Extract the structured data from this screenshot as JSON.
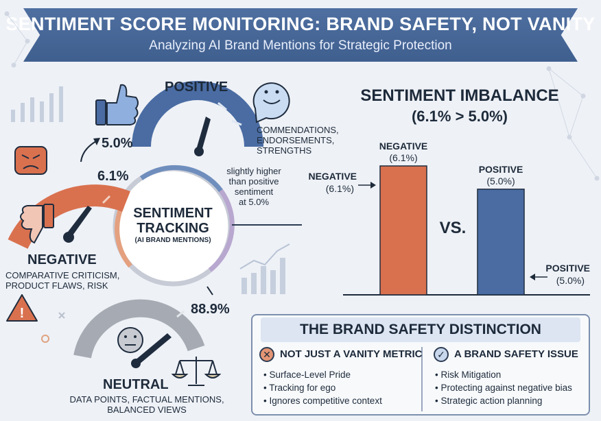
{
  "header": {
    "title": "SENTIMENT SCORE MONITORING: BRAND SAFETY, NOT VANITY",
    "subtitle": "Analyzing AI Brand Mentions for Strategic Protection"
  },
  "hub": {
    "line1": "SENTIMENT",
    "line2": "TRACKING",
    "line3": "(AI BRAND MENTIONS)"
  },
  "positive": {
    "label": "POSITIVE",
    "value": "5.0%",
    "fraction": 0.05,
    "desc": [
      "COMMENDATIONS,",
      "ENDORSEMENTS,",
      "STRENGTHS"
    ],
    "color": "#4a6ca3"
  },
  "negative": {
    "label": "NEGATIVE",
    "value": "6.1%",
    "fraction": 0.061,
    "desc": [
      "COMPARATIVE CRITICISM,",
      "PRODUCT FLAWS, RISK"
    ],
    "note": [
      "slightly higher",
      "than positive",
      "sentiment",
      "at 5.0%"
    ],
    "color": "#d9714f"
  },
  "neutral": {
    "label": "NEUTRAL",
    "value": "88.9%",
    "fraction": 0.889,
    "desc": [
      "DATA POINTS, FACTUAL MENTIONS,",
      "BALANCED VIEWS"
    ],
    "color": "#9ea3ab"
  },
  "chart_data": {
    "type": "bar",
    "title": "SENTIMENT IMBALANCE",
    "subtitle": "(6.1% > 5.0%)",
    "categories": [
      "NEGATIVE",
      "POSITIVE"
    ],
    "value_labels": [
      "(6.1%)",
      "(5.0%)"
    ],
    "values": [
      6.1,
      5.0
    ],
    "colors": [
      "#d9714f",
      "#4a6ca3"
    ],
    "separator": "VS.",
    "side_labels": [
      {
        "name": "NEGATIVE",
        "value": "(6.1%)"
      },
      {
        "name": "POSITIVE",
        "value": "(5.0%)"
      }
    ],
    "ylim": [
      0,
      6.1
    ]
  },
  "distinction": {
    "title": "THE BRAND SAFETY DISTINCTION",
    "left": {
      "title": "NOT JUST A VANITY METRIC",
      "icon": "x-circle-icon",
      "items": [
        "Surface-Level Pride",
        "Tracking for ego",
        "Ignores competitive context"
      ]
    },
    "right": {
      "title": "A BRAND SAFETY ISSUE",
      "icon": "check-circle-icon",
      "items": [
        "Risk Mitigation",
        "Protecting against negative bias",
        "Strategic action planning"
      ]
    }
  },
  "icons": {
    "x_glyph": "✕",
    "check_glyph": "✓",
    "warning_glyph": "!"
  }
}
